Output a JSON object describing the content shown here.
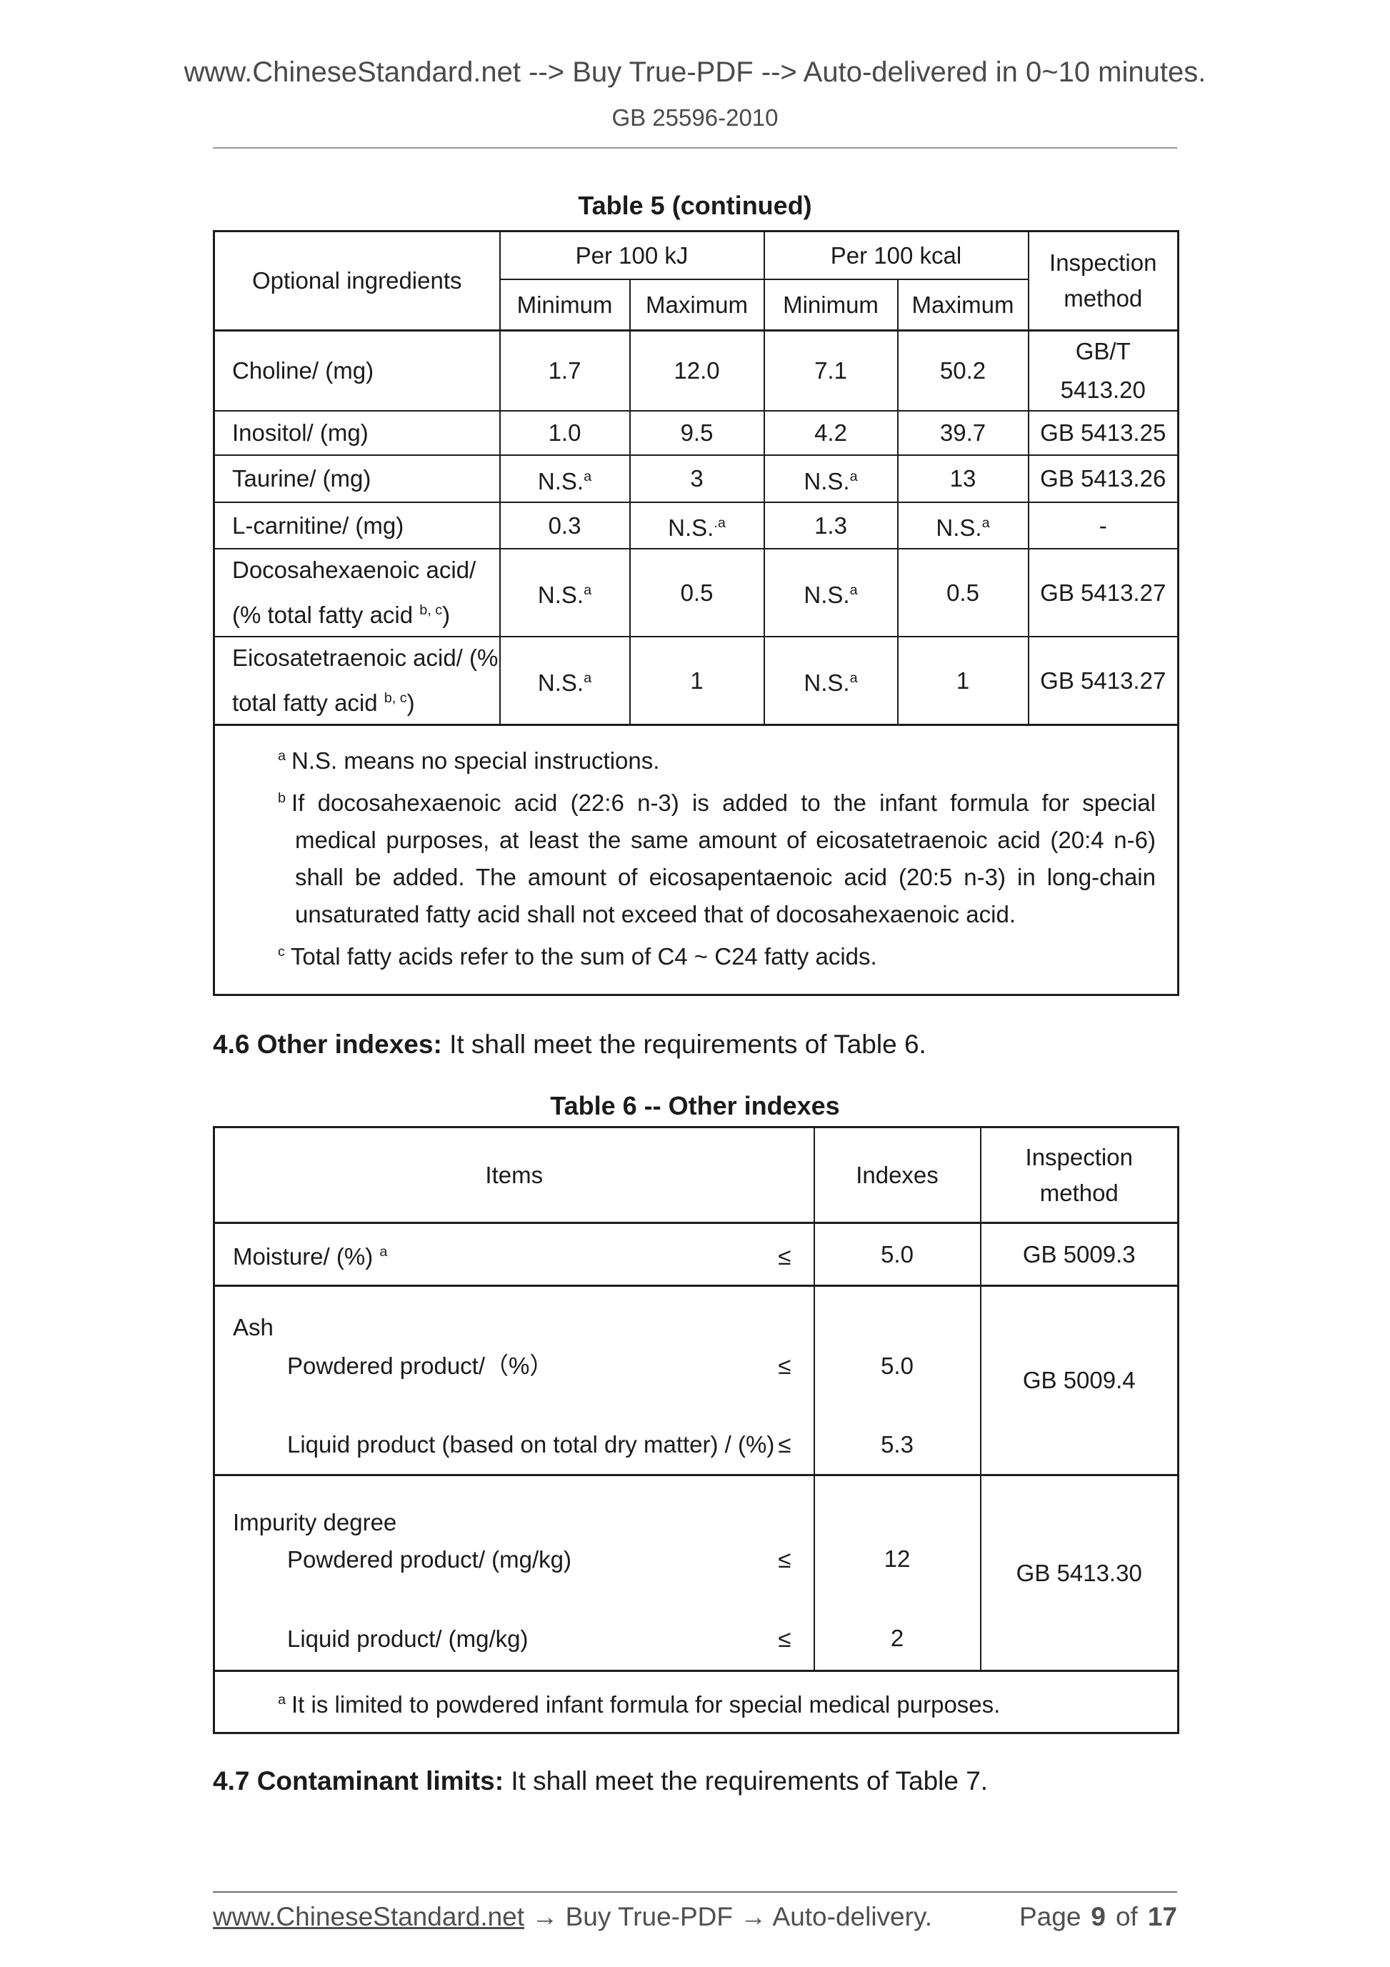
{
  "header": {
    "line": "www.ChineseStandard.net --> Buy True-PDF --> Auto-delivered in 0~10 minutes.",
    "doc_number": "GB 25596-2010"
  },
  "table5": {
    "title": "Table 5 (continued)",
    "header": {
      "item": "Optional ingredients",
      "group_kj": "Per 100 kJ",
      "group_kcal": "Per 100 kcal",
      "kj_min": "Minimum",
      "kj_max": "Maximum",
      "kcal_min": "Minimum",
      "kcal_max": "Maximum",
      "inspection": "Inspection method"
    },
    "rows": [
      {
        "item": "Choline/ (mg)",
        "kj_min": "1.7",
        "kj_max": "12.0",
        "kcal_min": "7.1",
        "kcal_max": "50.2",
        "method": "GB/T\n5413.20"
      },
      {
        "item": "Inositol/ (mg)",
        "kj_min": "1.0",
        "kj_max": "9.5",
        "kcal_min": "4.2",
        "kcal_max": "39.7",
        "method": "GB 5413.25"
      },
      {
        "item": "Taurine/ (mg)",
        "kj_min": "N.S.^{a}",
        "kj_max": "3",
        "kcal_min": "N.S.^{a}",
        "kcal_max": "13",
        "method": "GB 5413.26"
      },
      {
        "item": "L-carnitine/ (mg)",
        "kj_min": "0.3",
        "kj_max": "N.S.^{.a}",
        "kcal_min": "1.3",
        "kcal_max": "N.S.^{a}",
        "method": "-"
      },
      {
        "item": "Docosahexaenoic acid/\n(% total fatty acid ^{b, c})",
        "kj_min": "N.S.^{a}",
        "kj_max": "0.5",
        "kcal_min": "N.S.^{a}",
        "kcal_max": "0.5",
        "method": "GB 5413.27"
      },
      {
        "item": "Eicosatetraenoic acid/ (%\ntotal fatty acid ^{b, c})",
        "kj_min": "N.S.^{a}",
        "kj_max": "1",
        "kcal_min": "N.S.^{a}",
        "kcal_max": "1",
        "method": "GB 5413.27"
      }
    ],
    "footnotes": [
      {
        "marker": "a",
        "text": "N.S. means no special instructions."
      },
      {
        "marker": "b",
        "text": "If docosahexaenoic acid (22:6 n-3) is added to the infant formula for special medical purposes, at least the same amount of eicosatetraenoic acid (20:4 n-6) shall be added. The amount of eicosapentaenoic acid (20:5 n-3) in long-chain unsaturated fatty acid shall not exceed that of docosahexaenoic acid."
      },
      {
        "marker": "c",
        "text": "Total fatty acids refer to the sum of C4 ~ C24 fatty acids."
      }
    ]
  },
  "section_46": {
    "bold": "4.6 Other indexes:",
    "rest": " It shall meet the requirements of Table 6."
  },
  "table6": {
    "title": "Table 6 -- Other indexes",
    "header": {
      "items": "Items",
      "indexes": "Indexes",
      "inspection": "Inspection method"
    },
    "moisture": {
      "label": "Moisture/ (%) ^{a}",
      "le": "≤",
      "index": "5.0",
      "method": "GB 5009.3"
    },
    "ash": {
      "group": "Ash",
      "sub1": {
        "label": "Powdered product/（%）",
        "le": "≤",
        "index": "5.0"
      },
      "sub2": {
        "label": "Liquid product (based on total dry matter) / (%)",
        "le": "≤",
        "index": "5.3"
      },
      "method": "GB 5009.4"
    },
    "impurity": {
      "group": "Impurity degree",
      "sub1": {
        "label": "Powdered product/ (mg/kg)",
        "le": "≤",
        "index": "12"
      },
      "sub2": {
        "label": "Liquid product/ (mg/kg)",
        "le": "≤",
        "index": "2"
      },
      "method": "GB 5413.30"
    },
    "footnote": {
      "marker": "a",
      "text": "It is limited to powdered infant formula for special medical purposes."
    }
  },
  "section_47": {
    "bold": "4.7 Contaminant limits:",
    "rest": " It shall meet the requirements of Table 7."
  },
  "footer": {
    "url": "www.ChineseStandard.net",
    "rest": " → Buy True-PDF → Auto-delivery.",
    "page_label": "Page",
    "page_current": "9",
    "page_of": "of",
    "page_total": "17"
  }
}
